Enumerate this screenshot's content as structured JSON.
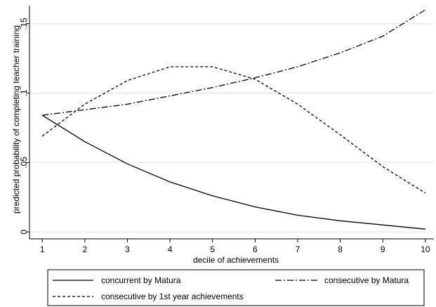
{
  "chart_data": {
    "type": "line",
    "xlabel": "decile of achievements",
    "ylabel": "predicted probability of completing teacher training",
    "x": [
      1,
      2,
      3,
      4,
      5,
      6,
      7,
      8,
      9,
      10
    ],
    "xticks": [
      1,
      2,
      3,
      4,
      5,
      6,
      7,
      8,
      9,
      10
    ],
    "xlim": [
      0.7,
      10.2
    ],
    "yticks": [
      {
        "value": 0,
        "label": "0"
      },
      {
        "value": 0.05,
        "label": ".05"
      },
      {
        "value": 0.1,
        "label": ".1"
      },
      {
        "value": 0.15,
        "label": ".15"
      }
    ],
    "ylim": [
      -0.005,
      0.163
    ],
    "grid": true,
    "legend_position": "bottom",
    "series": [
      {
        "name": "concurrent by Matura",
        "style": "solid",
        "values": [
          0.084,
          0.065,
          0.049,
          0.036,
          0.026,
          0.018,
          0.012,
          0.008,
          0.005,
          0.002
        ]
      },
      {
        "name": "consecutive by Matura",
        "style": "dash-dot",
        "values": [
          0.084,
          0.088,
          0.092,
          0.098,
          0.104,
          0.111,
          0.119,
          0.129,
          0.141,
          0.16
        ]
      },
      {
        "name": "consecutive by 1st year achievements",
        "style": "dotted",
        "values": [
          0.069,
          0.092,
          0.109,
          0.119,
          0.119,
          0.11,
          0.092,
          0.07,
          0.047,
          0.028
        ]
      }
    ]
  }
}
